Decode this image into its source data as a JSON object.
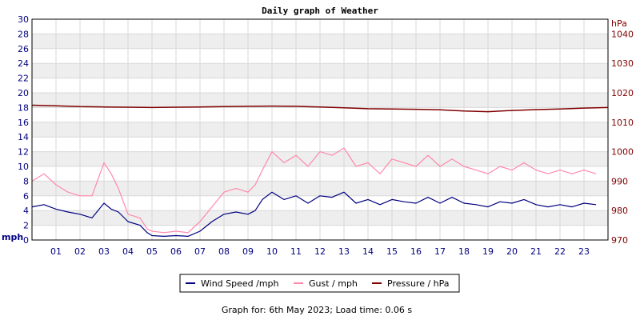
{
  "chart_data": {
    "type": "line",
    "title": "Daily graph of Weather",
    "footer": "Graph for: 6th May 2023; Load time: 0.06 s",
    "x_ticks": [
      "01",
      "02",
      "03",
      "04",
      "05",
      "06",
      "07",
      "08",
      "09",
      "10",
      "11",
      "12",
      "13",
      "14",
      "15",
      "16",
      "17",
      "18",
      "19",
      "20",
      "21",
      "22",
      "23"
    ],
    "x_range": [
      0,
      24
    ],
    "left_axis": {
      "unit": "mph",
      "range": [
        0,
        30
      ],
      "ticks": [
        "0",
        "2",
        "4",
        "6",
        "8",
        "10",
        "12",
        "14",
        "16",
        "18",
        "20",
        "22",
        "24",
        "26",
        "28",
        "30"
      ]
    },
    "right_axis": {
      "unit": "hPa",
      "range": [
        970,
        1045
      ],
      "ticks": [
        "970",
        "980",
        "990",
        "1000",
        "1010",
        "1020",
        "1030",
        "1040"
      ]
    },
    "grid": true,
    "legend_position": "bottom-center",
    "series": [
      {
        "name": "Wind Speed /mph",
        "axis": "left",
        "color": "#000080",
        "x": [
          0,
          0.5,
          1,
          1.5,
          2,
          2.5,
          3,
          3.3,
          3.6,
          4,
          4.5,
          4.8,
          5,
          5.5,
          6,
          6.5,
          7,
          7.5,
          8,
          8.5,
          9,
          9.3,
          9.6,
          10,
          10.5,
          11,
          11.5,
          12,
          12.5,
          13,
          13.5,
          14,
          14.5,
          15,
          15.5,
          16,
          16.5,
          17,
          17.5,
          18,
          18.5,
          19,
          19.5,
          20,
          20.5,
          21,
          21.5,
          22,
          22.5,
          23,
          23.5
        ],
        "y": [
          4.5,
          4.8,
          4.2,
          3.8,
          3.5,
          3.0,
          5.0,
          4.2,
          3.8,
          2.5,
          2.0,
          1.0,
          0.6,
          0.5,
          0.6,
          0.5,
          1.2,
          2.5,
          3.5,
          3.8,
          3.5,
          4.0,
          5.5,
          6.5,
          5.5,
          6.0,
          5.0,
          6.0,
          5.8,
          6.5,
          5.0,
          5.5,
          4.8,
          5.5,
          5.2,
          5.0,
          5.8,
          5.0,
          5.8,
          5.0,
          4.8,
          4.5,
          5.2,
          5.0,
          5.5,
          4.8,
          4.5,
          4.8,
          4.5,
          5.0,
          4.8
        ]
      },
      {
        "name": "Gust / mph",
        "axis": "left",
        "color": "#FF88AA",
        "x": [
          0,
          0.5,
          1,
          1.5,
          2,
          2.5,
          3,
          3.3,
          3.6,
          4,
          4.5,
          4.8,
          5,
          5.5,
          6,
          6.5,
          7,
          7.5,
          8,
          8.5,
          9,
          9.3,
          9.6,
          10,
          10.5,
          11,
          11.5,
          12,
          12.5,
          13,
          13.5,
          14,
          14.5,
          15,
          15.5,
          16,
          16.5,
          17,
          17.5,
          18,
          18.5,
          19,
          19.5,
          20,
          20.5,
          21,
          21.5,
          22,
          22.5,
          23,
          23.5
        ],
        "y": [
          8.0,
          9.0,
          7.5,
          6.5,
          6.0,
          6.0,
          10.5,
          9.0,
          7.0,
          3.5,
          3.0,
          1.5,
          1.2,
          1.0,
          1.2,
          1.0,
          2.5,
          4.5,
          6.5,
          7.0,
          6.5,
          7.5,
          9.5,
          12.0,
          10.5,
          11.5,
          10.0,
          12.0,
          11.5,
          12.5,
          10.0,
          10.5,
          9.0,
          11.0,
          10.5,
          10.0,
          11.5,
          10.0,
          11.0,
          10.0,
          9.5,
          9.0,
          10.0,
          9.5,
          10.5,
          9.5,
          9.0,
          9.5,
          9.0,
          9.5,
          9.0
        ]
      },
      {
        "name": "Pressure / hPa",
        "axis": "right",
        "color": "#800000",
        "x": [
          0,
          1,
          2,
          3,
          4,
          5,
          6,
          7,
          8,
          9,
          10,
          11,
          12,
          13,
          14,
          15,
          16,
          17,
          18,
          19,
          20,
          21,
          22,
          23,
          24
        ],
        "y": [
          1015.8,
          1015.6,
          1015.3,
          1015.2,
          1015.1,
          1015.0,
          1015.1,
          1015.2,
          1015.3,
          1015.4,
          1015.5,
          1015.4,
          1015.2,
          1014.9,
          1014.6,
          1014.5,
          1014.4,
          1014.2,
          1013.8,
          1013.6,
          1014.0,
          1014.3,
          1014.5,
          1014.8,
          1015.0
        ]
      }
    ]
  }
}
